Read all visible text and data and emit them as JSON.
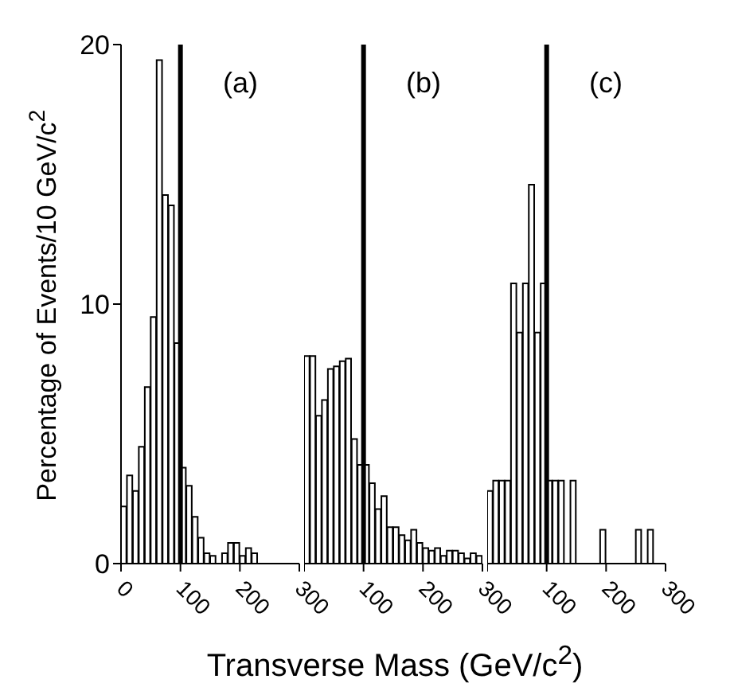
{
  "chart_data": [
    {
      "type": "histogram",
      "title": "(a)",
      "ylabel": "Percentage of Events/10 GeV/c$^{2}$",
      "color": "#000000",
      "bins": [
        0,
        10,
        20,
        30,
        40,
        50,
        60,
        70,
        80,
        90,
        100,
        110,
        120,
        130,
        140,
        150,
        160,
        170,
        180,
        190,
        200,
        210,
        220,
        230,
        240,
        250,
        260,
        270,
        280,
        290,
        300
      ],
      "values": [
        2.2,
        3.4,
        2.8,
        4.5,
        6.8,
        9.5,
        19.4,
        14.2,
        13.8,
        8.5,
        3.7,
        3.0,
        1.8,
        1.0,
        0.4,
        0.3,
        0,
        0.4,
        0.8,
        0.8,
        0.3,
        0.6,
        0.4,
        0,
        0,
        0,
        0,
        0,
        0,
        0
      ],
      "xlim": [
        0,
        300
      ],
      "xticks": [
        0,
        100,
        200,
        300
      ],
      "ylim": [
        0,
        20
      ],
      "yticks": [
        0,
        10,
        20
      ],
      "ref_lines": [
        {
          "axis": "x",
          "value": 100,
          "color": "#000000"
        }
      ]
    },
    {
      "type": "histogram",
      "title": "(b)",
      "xlabel": "Transverse Mass (GeV/c$^{2}$)",
      "color": "#000000",
      "bins": [
        0,
        10,
        20,
        30,
        40,
        50,
        60,
        70,
        80,
        90,
        100,
        110,
        120,
        130,
        140,
        150,
        160,
        170,
        180,
        190,
        200,
        210,
        220,
        230,
        240,
        250,
        260,
        270,
        280,
        290,
        300
      ],
      "values": [
        8.0,
        8.0,
        5.7,
        6.3,
        7.5,
        7.6,
        7.8,
        7.9,
        4.8,
        3.8,
        3.8,
        3.1,
        2.1,
        2.6,
        1.4,
        1.4,
        1.1,
        0.9,
        1.3,
        0.8,
        0.6,
        0.5,
        0.6,
        0.3,
        0.5,
        0.5,
        0.4,
        0.2,
        0.4,
        0.3
      ],
      "xlim": [
        0,
        300
      ],
      "xticks": [
        {
          "value": 0,
          "label": null
        },
        100,
        200,
        300
      ],
      "ylim": [
        0,
        20
      ],
      "tick_labels": "x",
      "ref_lines": [
        {
          "axis": "x",
          "value": 100,
          "color": "#000000"
        }
      ]
    },
    {
      "type": "histogram",
      "title": "(c)",
      "color": "#000000",
      "bins": [
        0,
        10,
        20,
        30,
        40,
        50,
        60,
        70,
        80,
        90,
        100,
        110,
        120,
        130,
        140,
        150,
        160,
        170,
        180,
        190,
        200,
        210,
        220,
        230,
        240,
        250,
        260,
        270,
        280,
        290,
        300
      ],
      "values": [
        2.8,
        3.2,
        3.2,
        3.2,
        10.8,
        8.9,
        10.8,
        14.6,
        8.9,
        10.8,
        3.2,
        3.2,
        3.2,
        0,
        3.2,
        0,
        0,
        0,
        0,
        1.3,
        0,
        0,
        0,
        0,
        0,
        1.3,
        0,
        1.3,
        0,
        0
      ],
      "xlim": [
        0,
        300
      ],
      "xticks": [
        {
          "value": 0,
          "label": null
        },
        100,
        200,
        300
      ],
      "ylim": [
        0,
        20
      ],
      "tick_labels": "x",
      "ref_lines": [
        {
          "axis": "x",
          "value": 100,
          "color": "#000000"
        }
      ]
    }
  ]
}
